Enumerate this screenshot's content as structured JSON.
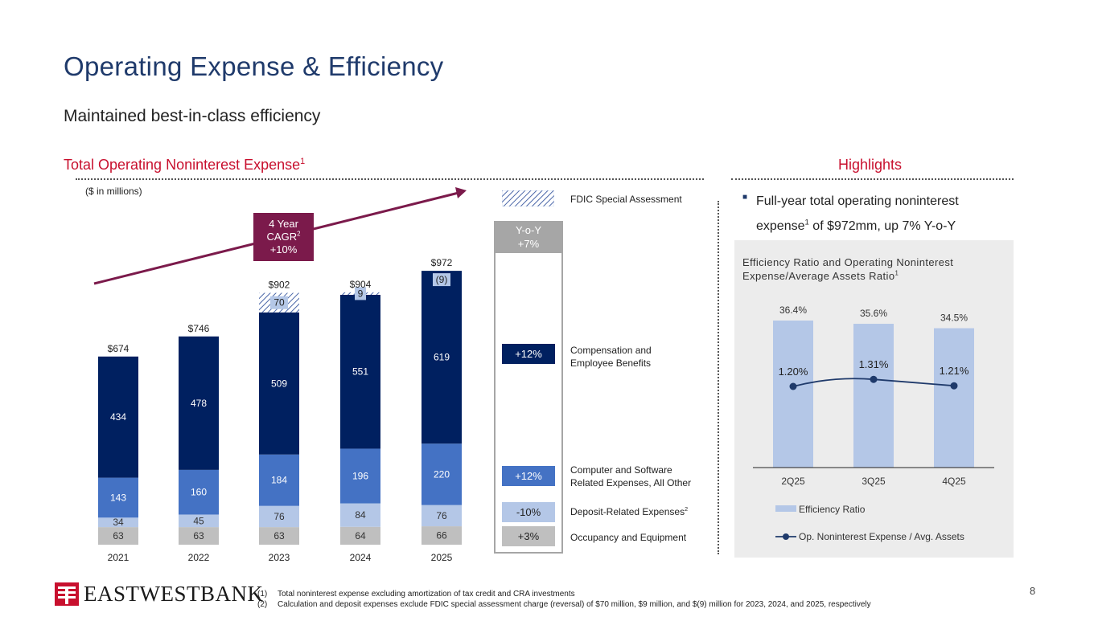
{
  "title": "Operating Expense & Efficiency",
  "subtitle": "Maintained best-in-class efficiency",
  "left_section": {
    "title": "Total Operating Noninterest Expense",
    "title_sup": "1",
    "units": "($ in millions)"
  },
  "right_section": {
    "title": "Highlights",
    "highlight_text": "Full-year total operating noninterest expense",
    "highlight_sup": "1",
    "highlight_text_rest": " of $972mm, up 7% Y-o-Y"
  },
  "cagr": {
    "line1": "4 Year",
    "line2": "CAGR",
    "sup": "2",
    "line3": "+10%"
  },
  "yoy": {
    "header_line1": "Y-o-Y",
    "header_line2": "+7%",
    "items": [
      {
        "value": "+12%",
        "label_line1": "Compensation and",
        "label_line2": "Employee Benefits",
        "color": "#002060"
      },
      {
        "value": "+12%",
        "label_line1": "Computer and Software",
        "label_line2": "Related Expenses, All Other",
        "color": "#4472c4"
      },
      {
        "value": "-10%",
        "label_line1": "Deposit-Related Expenses",
        "label_sup": "2",
        "color": "#b4c7e7"
      },
      {
        "value": "+3%",
        "label_line1": "Occupancy and Equipment",
        "color": "#bfbfbf"
      }
    ]
  },
  "legend": {
    "fdic": "FDIC Special Assessment"
  },
  "colors": {
    "comp": "#002060",
    "computer": "#4472c4",
    "deposit": "#b4c7e7",
    "occupancy": "#bfbfbf",
    "title_blue": "#1f3a6b",
    "accent_red": "#c8102e",
    "cagr": "#7b1a4b",
    "eff_bar": "#b4c7e7",
    "eff_line": "#1f3a6b"
  },
  "chart_data": [
    {
      "type": "bar",
      "stacked": true,
      "title": "Total Operating Noninterest Expense",
      "units": "$ in millions",
      "categories": [
        "2021",
        "2022",
        "2023",
        "2024",
        "2025"
      ],
      "series": [
        {
          "name": "Occupancy and Equipment",
          "values": [
            63,
            63,
            63,
            64,
            66
          ]
        },
        {
          "name": "Deposit-Related Expenses",
          "values": [
            34,
            45,
            76,
            84,
            76
          ]
        },
        {
          "name": "Computer and Software Related Expenses, All Other",
          "values": [
            143,
            160,
            184,
            196,
            220
          ]
        },
        {
          "name": "Compensation and Employee Benefits",
          "values": [
            434,
            478,
            509,
            551,
            619
          ]
        },
        {
          "name": "FDIC Special Assessment",
          "values": [
            0,
            0,
            70,
            9,
            -9
          ],
          "labels": [
            "",
            "",
            "70",
            "9",
            "(9)"
          ]
        }
      ],
      "totals": [
        674,
        746,
        902,
        904,
        972
      ],
      "total_labels": [
        "$674",
        "$746",
        "$902",
        "$904",
        "$972"
      ],
      "ylim": [
        0,
        1000
      ]
    },
    {
      "type": "bar+line",
      "title": "Efficiency Ratio and Operating Noninterest Expense/Average Assets Ratio",
      "title_sup": "1",
      "categories": [
        "2Q25",
        "3Q25",
        "4Q25"
      ],
      "series": [
        {
          "name": "Efficiency Ratio",
          "type": "bar",
          "values": [
            36.4,
            35.6,
            34.5
          ],
          "labels": [
            "36.4%",
            "35.6%",
            "34.5%"
          ]
        },
        {
          "name": "Op. Noninterest Expense / Avg. Assets",
          "type": "line",
          "values": [
            1.2,
            1.31,
            1.21
          ],
          "labels": [
            "1.20%",
            "1.31%",
            "1.21%"
          ]
        }
      ],
      "ylim": [
        0,
        40
      ]
    }
  ],
  "footnotes": [
    {
      "num": "(1)",
      "text": "Total noninterest expense excluding amortization of tax credit and CRA investments"
    },
    {
      "num": "(2)",
      "text": "Calculation and deposit expenses exclude FDIC special assessment charge (reversal) of $70 million, $9 million, and $(9) million for 2023, 2024, and 2025, respectively"
    }
  ],
  "page_number": "8",
  "logo_text": "EASTWESTBANK"
}
